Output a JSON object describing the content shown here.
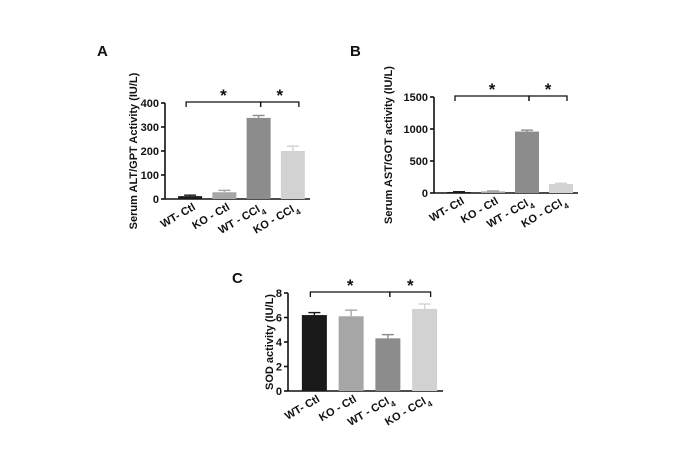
{
  "chart_data": [
    {
      "panel": "A",
      "type": "bar",
      "ylabel": "Serum ALT/GPT Activity (IU/L)",
      "ylim": [
        0,
        400
      ],
      "yticks": [
        0,
        100,
        200,
        300,
        400
      ],
      "categories": [
        "WT- Ctl",
        "KO - Ctl",
        "WT - CCl4",
        "KO - CCl4"
      ],
      "values": [
        12,
        28,
        338,
        200
      ],
      "errors": [
        4,
        8,
        10,
        20
      ],
      "colors": [
        "#1a1a1a",
        "#a6a6a6",
        "#8c8c8c",
        "#d2d2d2"
      ],
      "significance": [
        {
          "from": 0,
          "to": 2,
          "label": "*"
        },
        {
          "from": 2,
          "to": 3,
          "label": "*"
        }
      ]
    },
    {
      "panel": "B",
      "type": "bar",
      "ylabel": "Serum AST/GOT activity (IU/L)",
      "ylim": [
        0,
        1500
      ],
      "yticks": [
        0,
        500,
        1000,
        1500
      ],
      "categories": [
        "WT- Ctl",
        "KO - Ctl",
        "WT - CCl4",
        "KO - CCl4"
      ],
      "values": [
        15,
        25,
        960,
        140
      ],
      "errors": [
        5,
        8,
        22,
        12
      ],
      "colors": [
        "#1a1a1a",
        "#a6a6a6",
        "#8c8c8c",
        "#d2d2d2"
      ],
      "significance": [
        {
          "from": 0,
          "to": 2,
          "label": "*"
        },
        {
          "from": 2,
          "to": 3,
          "label": "*"
        }
      ]
    },
    {
      "panel": "C",
      "type": "bar",
      "ylabel": "SOD activity (IU/L)",
      "ylim": [
        0,
        8
      ],
      "yticks": [
        0,
        2,
        4,
        6,
        8
      ],
      "categories": [
        "WT- Ctl",
        "KO - Ctl",
        "WT - CCl4",
        "KO - CCl4"
      ],
      "values": [
        6.2,
        6.1,
        4.3,
        6.7
      ],
      "errors": [
        0.2,
        0.5,
        0.3,
        0.4
      ],
      "colors": [
        "#1a1a1a",
        "#a6a6a6",
        "#8c8c8c",
        "#d2d2d2"
      ],
      "significance": [
        {
          "from": 0,
          "to": 2,
          "label": "*"
        },
        {
          "from": 2,
          "to": 3,
          "label": "*"
        }
      ]
    }
  ]
}
